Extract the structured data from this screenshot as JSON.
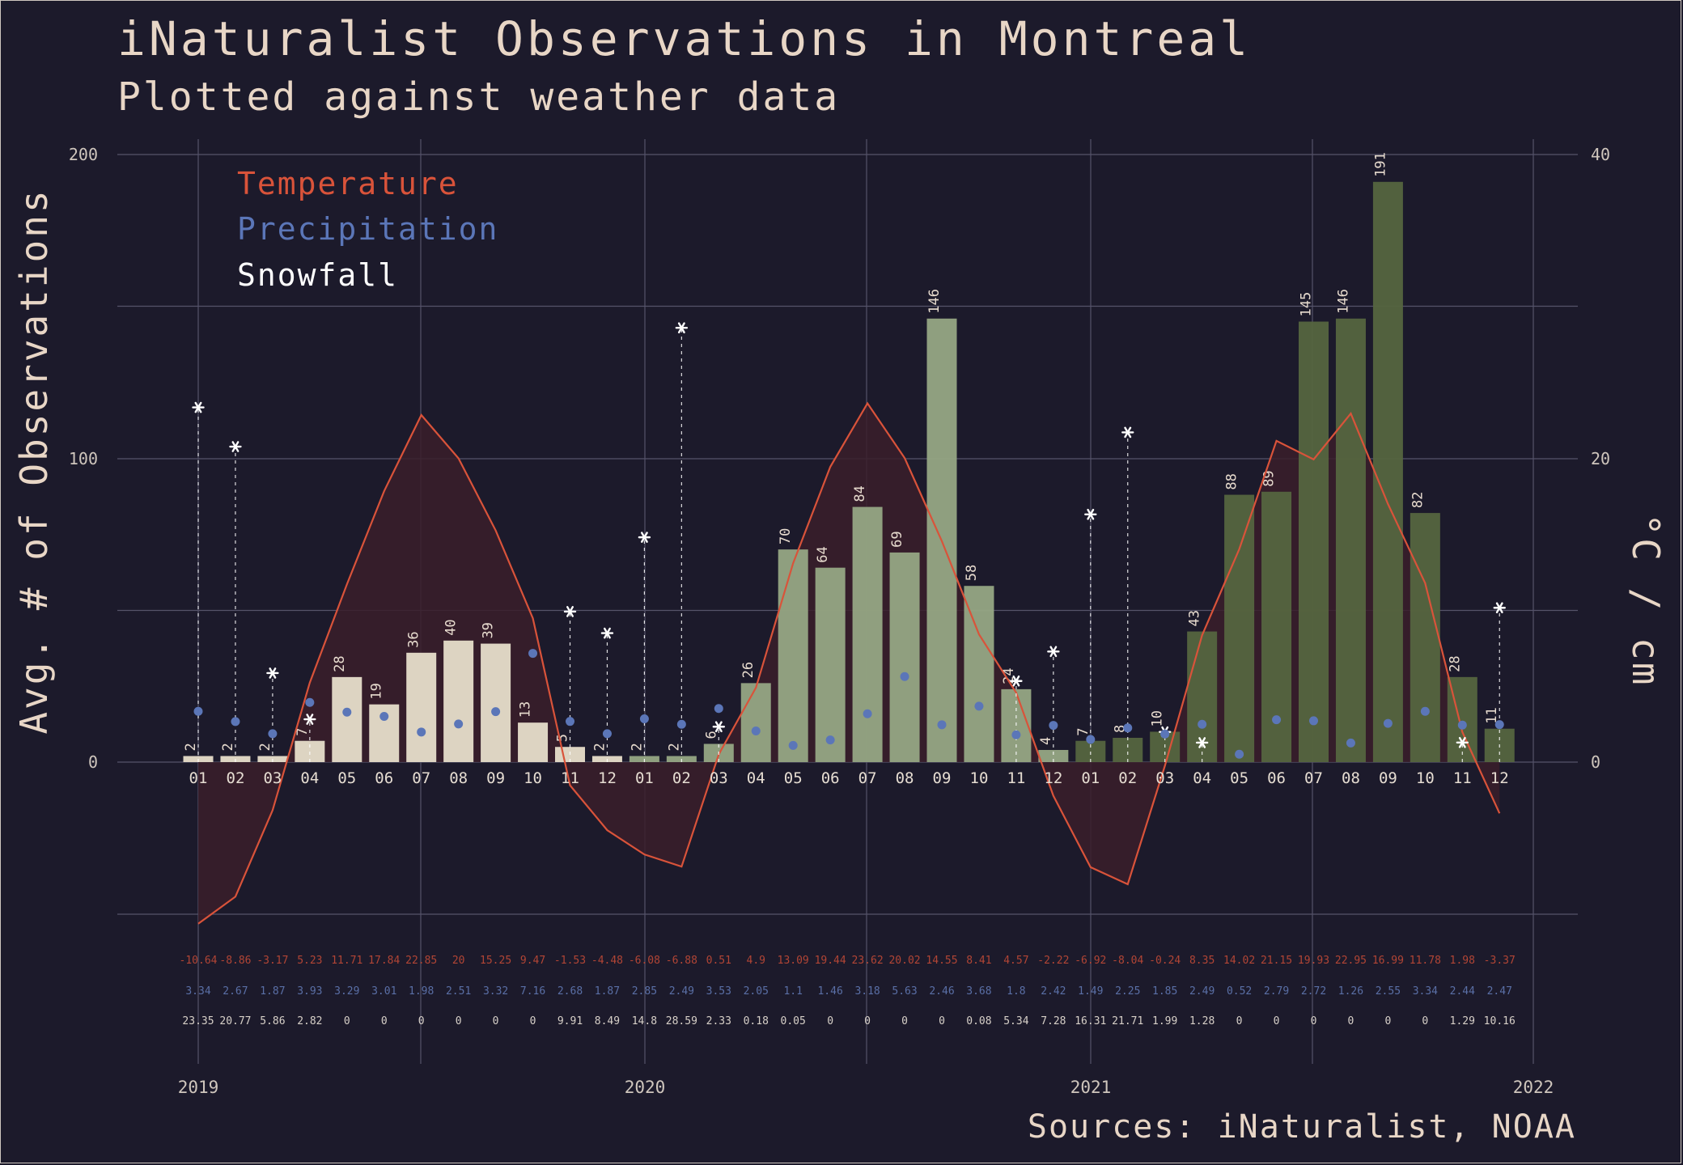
{
  "title": "iNaturalist Observations in Montreal",
  "subtitle": "Plotted against weather data",
  "source": "Sources: iNaturalist, NOAA",
  "legend": [
    {
      "label": "Temperature",
      "color": "#d9533a"
    },
    {
      "label": "Precipitation",
      "color": "#5b76b8"
    },
    {
      "label": "Snowfall",
      "color": "#ffffff"
    }
  ],
  "colors": {
    "background": "#1c1a2b",
    "bars_2019": "#ddd4c2",
    "bars_2020": "#96a784",
    "bars_2021": "#55653f",
    "temperature": "#d9533a",
    "temperature_fill": "#3a1e2a",
    "precipitation": "#5b76b8",
    "snowfall": "#ffffff",
    "grid": "#55536a"
  },
  "chart_data": {
    "type": "bar",
    "title": "iNaturalist Observations in Montreal",
    "subtitle": "Plotted against weather data",
    "ylabel": "Avg. # of Observations",
    "y2label": "°C / cm",
    "ylim": [
      0,
      200
    ],
    "y2lim": [
      0,
      40
    ],
    "y_ticks": [
      "0",
      "100",
      "200"
    ],
    "y2_ticks": [
      "0",
      "20",
      "40"
    ],
    "year_labels": [
      "2019",
      "2020",
      "2021",
      "2022"
    ],
    "categories": [
      "01",
      "02",
      "03",
      "04",
      "05",
      "06",
      "07",
      "08",
      "09",
      "10",
      "11",
      "12",
      "01",
      "02",
      "03",
      "04",
      "05",
      "06",
      "07",
      "08",
      "09",
      "10",
      "11",
      "12",
      "01",
      "02",
      "03",
      "04",
      "05",
      "06",
      "07",
      "08",
      "09",
      "10",
      "11",
      "12"
    ],
    "series": [
      {
        "name": "Observations",
        "type": "bar",
        "values": [
          2,
          2,
          2,
          7,
          28,
          19,
          36,
          40,
          39,
          13,
          5,
          2,
          2,
          2,
          6,
          26,
          70,
          64,
          84,
          69,
          146,
          58,
          24,
          4,
          7,
          8,
          10,
          43,
          88,
          89,
          145,
          146,
          191,
          82,
          28,
          11
        ]
      },
      {
        "name": "Temperature",
        "type": "line",
        "values": [
          -10.64,
          -8.86,
          -3.17,
          5.23,
          11.71,
          17.84,
          22.85,
          20,
          15.25,
          9.47,
          -1.53,
          -4.48,
          -6.08,
          -6.88,
          0.51,
          4.9,
          13.09,
          19.44,
          23.62,
          20.02,
          14.55,
          8.41,
          4.57,
          -2.22,
          -6.92,
          -8.04,
          -0.24,
          8.35,
          14.02,
          21.15,
          19.93,
          22.95,
          16.99,
          11.78,
          1.98,
          -3.37
        ],
        "labels": [
          "-10.64",
          "-8.86",
          "-3.17",
          "5.23",
          "11.71",
          "17.84",
          "22.85",
          "20",
          "15.25",
          "9.47",
          "-1.53",
          "-4.48",
          "-6.08",
          "-6.88",
          "0.51",
          "4.9",
          "13.09",
          "19.44",
          "23.62",
          "20.02",
          "14.55",
          "8.41",
          "4.57",
          "-2.22",
          "-6.92",
          "-8.04",
          "-0.24",
          "8.35",
          "14.02",
          "21.15",
          "19.93",
          "22.95",
          "16.99",
          "11.78",
          "1.98",
          "-3.37"
        ]
      },
      {
        "name": "Precipitation",
        "type": "scatter",
        "values": [
          3.34,
          2.67,
          1.87,
          3.93,
          3.29,
          3.01,
          1.98,
          2.51,
          3.32,
          7.16,
          2.68,
          1.87,
          2.85,
          2.49,
          3.53,
          2.05,
          1.1,
          1.46,
          3.18,
          5.63,
          2.46,
          3.68,
          1.8,
          2.42,
          1.49,
          2.25,
          1.85,
          2.49,
          0.52,
          2.79,
          2.72,
          1.26,
          2.55,
          3.34,
          2.44,
          2.47
        ],
        "labels": [
          "3.34",
          "2.67",
          "1.87",
          "3.93",
          "3.29",
          "3.01",
          "1.98",
          "2.51",
          "3.32",
          "7.16",
          "2.68",
          "1.87",
          "2.85",
          "2.49",
          "3.53",
          "2.05",
          "1.1",
          "1.46",
          "3.18",
          "5.63",
          "2.46",
          "3.68",
          "1.8",
          "2.42",
          "1.49",
          "2.25",
          "1.85",
          "2.49",
          "0.52",
          "2.79",
          "2.72",
          "1.26",
          "2.55",
          "3.34",
          "2.44",
          "2.47"
        ]
      },
      {
        "name": "Snowfall",
        "type": "scatter",
        "values": [
          23.35,
          20.77,
          5.86,
          2.82,
          0,
          0,
          0,
          0,
          0,
          0,
          9.91,
          8.49,
          14.8,
          28.59,
          2.33,
          0.18,
          0.05,
          0,
          0,
          0,
          0,
          0.08,
          5.34,
          7.28,
          16.31,
          21.71,
          1.99,
          1.28,
          0,
          0,
          0,
          0,
          0,
          0,
          1.29,
          10.16
        ],
        "labels": [
          "23.35",
          "20.77",
          "5.86",
          "2.82",
          "0",
          "0",
          "0",
          "0",
          "0",
          "0",
          "9.91",
          "8.49",
          "14.8",
          "28.59",
          "2.33",
          "0.18",
          "0.05",
          "0",
          "0",
          "0",
          "0",
          "0.08",
          "5.34",
          "7.28",
          "16.31",
          "21.71",
          "1.99",
          "1.28",
          "0",
          "0",
          "0",
          "0",
          "0",
          "0",
          "1.29",
          "10.16"
        ]
      }
    ],
    "grid": true,
    "legend_position": "top-left"
  }
}
